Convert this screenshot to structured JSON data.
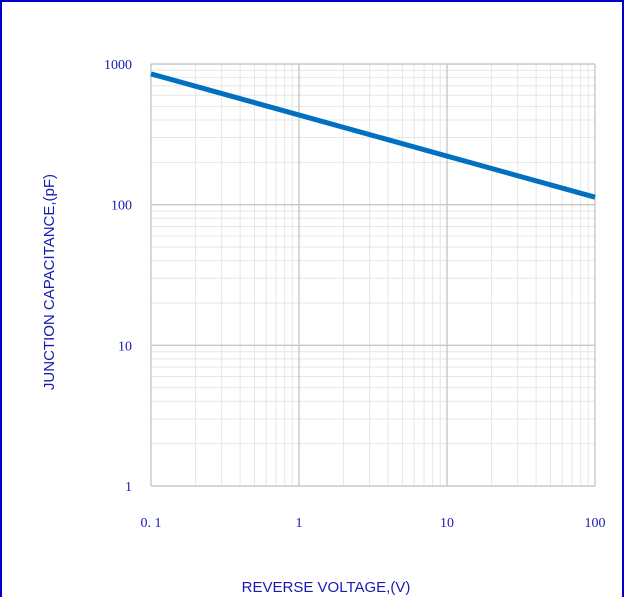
{
  "chart_data": {
    "type": "line",
    "title": "",
    "xlabel": "REVERSE VOLTAGE,(V)",
    "ylabel": "JUNCTION CAPACITANCE,(pF)",
    "x_scale": "log",
    "y_scale": "log",
    "xlim": [
      0.1,
      100
    ],
    "ylim": [
      1,
      1000
    ],
    "x_ticks": [
      0.1,
      1,
      10,
      100
    ],
    "x_tick_labels": [
      "0. 1",
      "1",
      "10",
      "100"
    ],
    "y_ticks": [
      1,
      10,
      100,
      1000
    ],
    "y_tick_labels": [
      "1",
      "10",
      "100",
      "1000"
    ],
    "grid": true,
    "series": [
      {
        "x": [
          0.1,
          100
        ],
        "y": [
          850,
          113
        ],
        "color": "#0070c0"
      }
    ],
    "colors": {
      "frame": "#0000cc",
      "text": "#1a1ab0",
      "grid_major": "#c8c8c8",
      "grid_minor": "#e6e6e6"
    }
  }
}
